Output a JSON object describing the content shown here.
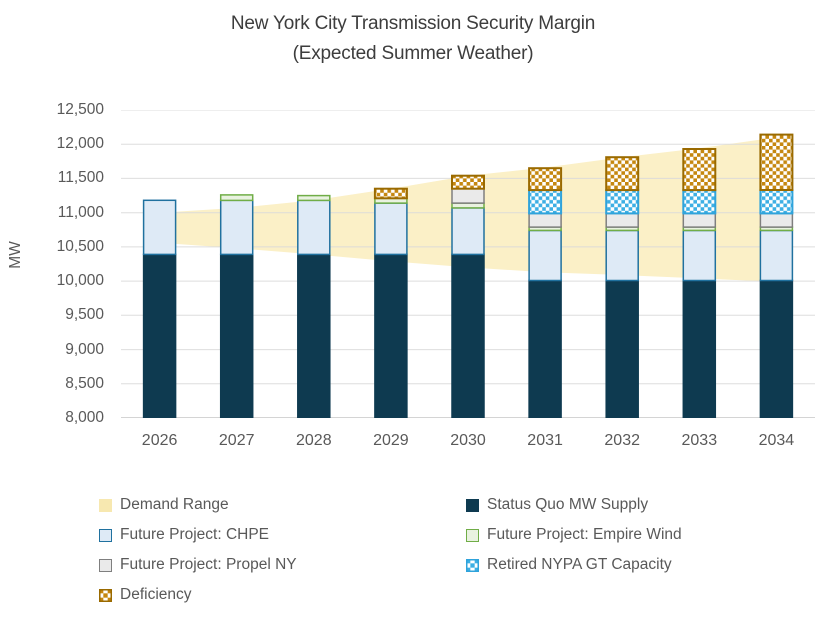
{
  "title": "New York City Transmission Security Margin",
  "subtitle": "(Expected Summer Weather)",
  "y_axis": {
    "label": "MW",
    "tick_labels": [
      "8,000",
      "8,500",
      "9,000",
      "9,500",
      "10,000",
      "10,500",
      "11,000",
      "11,500",
      "12,000",
      "12,500"
    ]
  },
  "x_axis": {
    "tick_labels": [
      "2026",
      "2027",
      "2028",
      "2029",
      "2030",
      "2031",
      "2032",
      "2033",
      "2034"
    ]
  },
  "chart_data": {
    "type": "bar",
    "stacked": true,
    "title": "New York City Transmission Security Margin",
    "subtitle": "(Expected Summer Weather)",
    "ylabel": "MW",
    "ylim": [
      8000,
      12500
    ],
    "ytick_step": 500,
    "grid": true,
    "categories": [
      "2026",
      "2027",
      "2028",
      "2029",
      "2030",
      "2031",
      "2032",
      "2033",
      "2034"
    ],
    "units": "MW segment size per stacked series",
    "series": [
      {
        "name": "Status Quo MW Supply",
        "pattern": null,
        "fill": "#0E3A50",
        "stroke": "#0E3A50",
        "values": [
          10390,
          10390,
          10390,
          10390,
          10390,
          10010,
          10010,
          10010,
          10010
        ]
      },
      {
        "name": "Future Project: CHPE",
        "pattern": null,
        "fill": "#DEEAF6",
        "stroke": "#20719F",
        "values": [
          790,
          790,
          790,
          750,
          680,
          730,
          730,
          730,
          730
        ]
      },
      {
        "name": "Future Project: Empire Wind",
        "pattern": null,
        "fill": "#E9F2E0",
        "stroke": "#70AD47",
        "values": [
          0,
          80,
          70,
          70,
          70,
          50,
          50,
          50,
          50
        ]
      },
      {
        "name": "Future Project: Propel NY",
        "pattern": null,
        "fill": "#EAEAEA",
        "stroke": "#7F7F7F",
        "values": [
          0,
          0,
          0,
          0,
          210,
          200,
          200,
          200,
          200
        ]
      },
      {
        "name": "Retired NYPA GT Capacity",
        "pattern": "check",
        "fill": "#3DAFE4",
        "stroke": "#2FA3DB",
        "values": [
          0,
          0,
          0,
          0,
          0,
          340,
          340,
          340,
          340
        ]
      },
      {
        "name": "Deficiency",
        "pattern": "check",
        "fill": "#C5870F",
        "stroke": "#9A6A00",
        "values": [
          0,
          0,
          0,
          140,
          190,
          320,
          480,
          600,
          810
        ]
      }
    ],
    "band": {
      "name": "Demand Range",
      "fill": "#FBF0C7",
      "upper": [
        11000,
        11070,
        11180,
        11350,
        11540,
        11660,
        11810,
        11940,
        12100
      ],
      "lower": [
        10560,
        10480,
        10390,
        10290,
        10200,
        10130,
        10090,
        10040,
        9990
      ]
    },
    "colors": {
      "grid": "#D9D9D9",
      "axis_line": "#BFBFBF",
      "tick_text": "#595959",
      "title_text": "#3D3D3D"
    }
  },
  "legend": {
    "swatches": {
      "band": {
        "kind": "solid",
        "fill": "#F7E8B0",
        "stroke": "#F7E8B0"
      },
      "statusquo": {
        "kind": "solid",
        "fill": "#0E3A50",
        "stroke": "#0E3A50"
      },
      "chpe": {
        "kind": "outline",
        "fill": "#DEEAF6",
        "stroke": "#20719F"
      },
      "empirewind": {
        "kind": "outline",
        "fill": "#E9F2E0",
        "stroke": "#70AD47"
      },
      "propel": {
        "kind": "outline",
        "fill": "#EAEAEA",
        "stroke": "#7F7F7F"
      },
      "nypa": {
        "kind": "check",
        "fill": "#3DAFE4",
        "stroke": "#2FA3DB"
      },
      "deficiency": {
        "kind": "check",
        "fill": "#C5870F",
        "stroke": "#9A6A00"
      }
    },
    "columns": [
      [
        {
          "label": "Demand Range",
          "swatch": "band"
        },
        {
          "label": "Future Project: CHPE",
          "swatch": "chpe"
        },
        {
          "label": "Future Project: Propel NY",
          "swatch": "propel"
        },
        {
          "label": "Deficiency",
          "swatch": "deficiency"
        }
      ],
      [
        {
          "label": "Status Quo MW Supply",
          "swatch": "statusquo"
        },
        {
          "label": "Future Project: Empire Wind",
          "swatch": "empirewind"
        },
        {
          "label": "Retired NYPA GT Capacity",
          "swatch": "nypa"
        }
      ]
    ]
  }
}
